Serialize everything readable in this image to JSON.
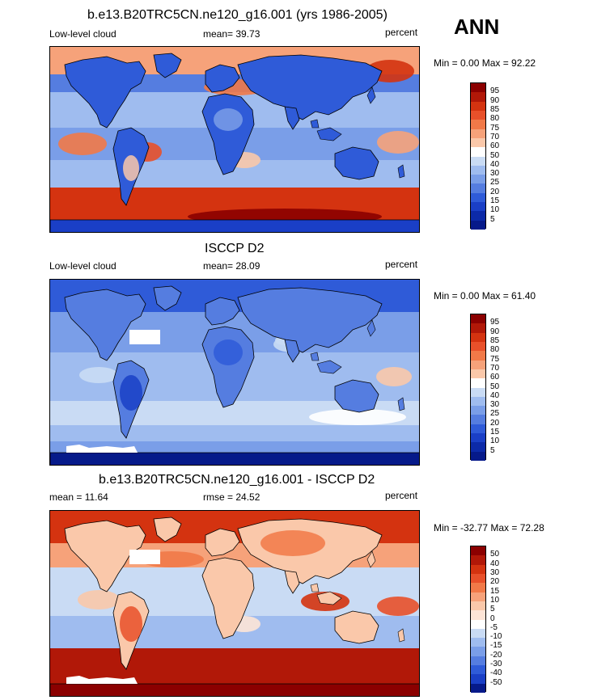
{
  "season": "ANN",
  "panels": [
    {
      "title": "b.e13.B20TRC5CN.ne120_g16.001 (yrs 1986-2005)",
      "left_label": "Low-level cloud",
      "stat_label": "mean=  39.73",
      "units": "percent",
      "minmax": "Min =   0.00 Max =  92.22",
      "colorbar": {
        "levels": [
          "95",
          "90",
          "85",
          "80",
          "75",
          "70",
          "60",
          "50",
          "40",
          "30",
          "25",
          "20",
          "15",
          "10",
          "5"
        ],
        "colors": [
          "#8b0000",
          "#b11808",
          "#d43310",
          "#e8502a",
          "#f17948",
          "#f6a27a",
          "#fac8aa",
          "#ffffff",
          "#c9dbf4",
          "#9fbcef",
          "#7a9ee8",
          "#557de0",
          "#2f5bd8",
          "#1a3fc6",
          "#0c2aa8",
          "#061a8a"
        ]
      },
      "map": {
        "kind": "model"
      }
    },
    {
      "title": "ISCCP D2",
      "left_label": "Low-level cloud",
      "stat_label": "mean=  28.09",
      "units": "percent",
      "minmax": "Min =   0.00 Max =  61.40",
      "colorbar": {
        "levels": [
          "95",
          "90",
          "85",
          "80",
          "75",
          "70",
          "60",
          "50",
          "40",
          "30",
          "25",
          "20",
          "15",
          "10",
          "5"
        ],
        "colors": [
          "#8b0000",
          "#b11808",
          "#d43310",
          "#e8502a",
          "#f17948",
          "#f6a27a",
          "#fac8aa",
          "#ffffff",
          "#c9dbf4",
          "#9fbcef",
          "#7a9ee8",
          "#557de0",
          "#2f5bd8",
          "#1a3fc6",
          "#0c2aa8",
          "#061a8a"
        ]
      },
      "map": {
        "kind": "obs"
      }
    },
    {
      "title": "b.e13.B20TRC5CN.ne120_g16.001 - ISCCP D2",
      "left_label": "mean =  11.64",
      "stat_label": "rmse =  24.52",
      "units": "percent",
      "minmax": "Min = -32.77 Max =  72.28",
      "colorbar": {
        "levels": [
          "50",
          "40",
          "30",
          "20",
          "15",
          "10",
          "5",
          "0",
          "-5",
          "-10",
          "-15",
          "-20",
          "-30",
          "-40",
          "-50"
        ],
        "colors": [
          "#8b0000",
          "#b11808",
          "#d43310",
          "#e8502a",
          "#f17948",
          "#f6a27a",
          "#fac8aa",
          "#fde4d6",
          "#ffffff",
          "#c9dbf4",
          "#9fbcef",
          "#7a9ee8",
          "#557de0",
          "#2f5bd8",
          "#1a3fc6",
          "#061a8a"
        ]
      },
      "map": {
        "kind": "diff"
      }
    }
  ],
  "chart_data": [
    {
      "type": "heatmap",
      "title": "b.e13.B20TRC5CN.ne120_g16.001 (yrs 1986-2005)",
      "variable": "Low-level cloud",
      "units": "percent",
      "mean": 39.73,
      "min": 0.0,
      "max": 92.22,
      "levels": [
        5,
        10,
        15,
        20,
        25,
        30,
        40,
        50,
        60,
        70,
        75,
        80,
        85,
        90,
        95
      ]
    },
    {
      "type": "heatmap",
      "title": "ISCCP D2",
      "variable": "Low-level cloud",
      "units": "percent",
      "mean": 28.09,
      "min": 0.0,
      "max": 61.4,
      "levels": [
        5,
        10,
        15,
        20,
        25,
        30,
        40,
        50,
        60,
        70,
        75,
        80,
        85,
        90,
        95
      ]
    },
    {
      "type": "heatmap",
      "title": "b.e13.B20TRC5CN.ne120_g16.001 - ISCCP D2",
      "units": "percent",
      "mean": 11.64,
      "rmse": 24.52,
      "min": -32.77,
      "max": 72.28,
      "levels": [
        -50,
        -40,
        -30,
        -20,
        -15,
        -10,
        -5,
        0,
        5,
        10,
        15,
        20,
        30,
        40,
        50
      ]
    }
  ]
}
